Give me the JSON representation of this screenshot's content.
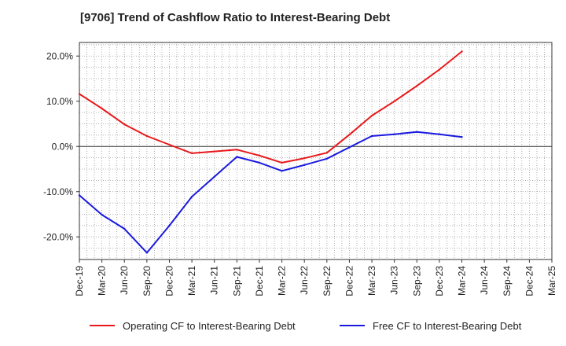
{
  "chart_data": {
    "type": "line",
    "title": "[9706]  Trend of Cashflow Ratio to Interest-Bearing Debt",
    "xlabel": "",
    "ylabel": "",
    "categories": [
      "Dec-19",
      "Mar-20",
      "Jun-20",
      "Sep-20",
      "Dec-20",
      "Mar-21",
      "Jun-21",
      "Sep-21",
      "Dec-21",
      "Mar-22",
      "Jun-22",
      "Sep-22",
      "Dec-22",
      "Mar-23",
      "Jun-23",
      "Sep-23",
      "Dec-23",
      "Mar-24",
      "Jun-24",
      "Sep-24",
      "Dec-24",
      "Mar-25"
    ],
    "ylim": [
      -25,
      23
    ],
    "yticks": [
      20,
      10,
      0,
      -10,
      -20
    ],
    "ytick_labels": [
      "20.0%",
      "10.0%",
      "0.0%",
      "-10.0%",
      "-20.0%"
    ],
    "grid": true,
    "legend_position": "bottom",
    "series": [
      {
        "name": "Operating CF to Interest-Bearing Debt",
        "color": "#e8191b",
        "values": [
          11.6,
          8.4,
          4.9,
          2.3,
          0.4,
          -1.5,
          -1.1,
          -0.7,
          -2.0,
          -3.6,
          -2.6,
          -1.4,
          2.6,
          6.8,
          10.0,
          13.4,
          17.0,
          21.0,
          null,
          null,
          null,
          null
        ]
      },
      {
        "name": "Free CF to Interest-Bearing Debt",
        "color": "#1a1adf",
        "values": [
          -10.8,
          -15.1,
          -18.2,
          -23.5,
          -17.5,
          -11.1,
          -6.7,
          -2.3,
          -3.6,
          -5.4,
          -4.1,
          -2.7,
          -0.2,
          2.3,
          2.7,
          3.2,
          2.7,
          2.1,
          null,
          null,
          null,
          null
        ]
      }
    ]
  }
}
